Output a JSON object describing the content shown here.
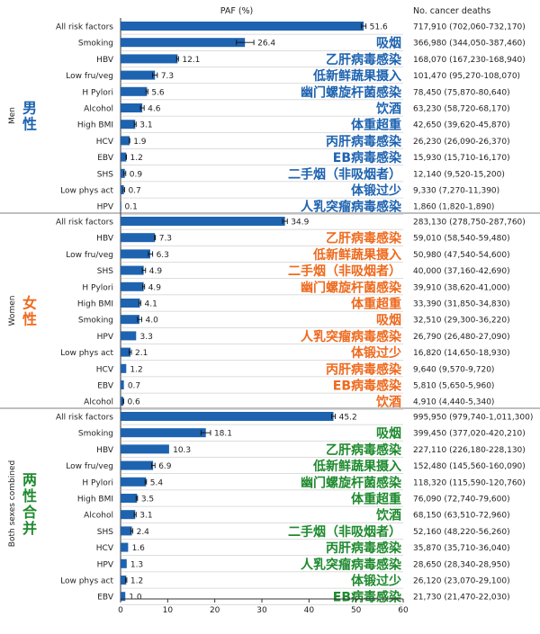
{
  "chart_data": {
    "type": "bar",
    "orientation": "horizontal",
    "xlabel": "PAF (%)",
    "right_header": "No. cancer deaths",
    "xlim": [
      0,
      60
    ],
    "xticks": [
      0,
      10,
      20,
      30,
      40,
      50,
      60
    ],
    "bar_color": "#1e63b0",
    "grid": false,
    "panels": [
      {
        "label": "Men",
        "cn_label": "男性",
        "cn_color": "#1e63b0",
        "rows": [
          {
            "category": "All risk factors",
            "value": 51.6,
            "err": [
              51.1,
              52.1
            ],
            "cn": "",
            "deaths": "717,910 (702,060-732,170)"
          },
          {
            "category": "Smoking",
            "value": 26.4,
            "err": [
              24.6,
              28.3
            ],
            "cn": "吸烟",
            "deaths": "366,980 (344,050-387,460)"
          },
          {
            "category": "HBV",
            "value": 12.1,
            "err": [
              11.9,
              12.3
            ],
            "cn": "乙肝病毒感染",
            "deaths": "168,070 (167,230-168,940)"
          },
          {
            "category": "Low fru/veg",
            "value": 7.3,
            "err": [
              6.8,
              7.8
            ],
            "cn": "低新鲜蔬果摄入",
            "deaths": "101,470 (95,270-108,070)"
          },
          {
            "category": "H Pylori",
            "value": 5.6,
            "err": [
              5.4,
              5.8
            ],
            "cn": "幽门螺旋杆菌感染",
            "deaths": "78,450 (75,870-80,640)"
          },
          {
            "category": "Alcohol",
            "value": 4.6,
            "err": [
              4.2,
              5.0
            ],
            "cn": "饮酒",
            "deaths": "63,230 (58,720-68,170)"
          },
          {
            "category": "High BMI",
            "value": 3.1,
            "err": [
              2.9,
              3.3
            ],
            "cn": "体重超重",
            "deaths": "42,650 (39,620-45,870)"
          },
          {
            "category": "HCV",
            "value": 1.9,
            "err": [
              1.85,
              1.95
            ],
            "cn": "丙肝病毒感染",
            "deaths": "26,230 (26,090-26,370)"
          },
          {
            "category": "EBV",
            "value": 1.2,
            "err": [
              1.15,
              1.25
            ],
            "cn": "EB病毒感染",
            "deaths": "15,930 (15,710-16,170)"
          },
          {
            "category": "SHS",
            "value": 0.9,
            "err": [
              0.7,
              1.1
            ],
            "cn": "二手烟（非吸烟者）",
            "deaths": "12,140 (9,520-15,200)"
          },
          {
            "category": "Low phys act",
            "value": 0.7,
            "err": [
              0.55,
              0.85
            ],
            "cn": "体锻过少",
            "deaths": "9,330 (7,270-11,390)"
          },
          {
            "category": "HPV",
            "value": 0.1,
            "err": [
              0.1,
              0.1
            ],
            "cn": "人乳突瘤病毒感染",
            "deaths": "1,860 (1,820-1,890)"
          }
        ]
      },
      {
        "label": "Women",
        "cn_label": "女性",
        "cn_color": "#ee6a1e",
        "rows": [
          {
            "category": "All risk factors",
            "value": 34.9,
            "err": [
              34.4,
              35.4
            ],
            "cn": "",
            "deaths": "283,130 (278,750-287,760)"
          },
          {
            "category": "HBV",
            "value": 7.3,
            "err": [
              7.2,
              7.4
            ],
            "cn": "乙肝病毒感染",
            "deaths": "59,010 (58,540-59,480)"
          },
          {
            "category": "Low fru/veg",
            "value": 6.3,
            "err": [
              5.9,
              6.8
            ],
            "cn": "低新鲜蔬果摄入",
            "deaths": "50,980 (47,540-54,600)"
          },
          {
            "category": "SHS",
            "value": 4.9,
            "err": [
              4.6,
              5.3
            ],
            "cn": "二手烟（非吸烟者）",
            "deaths": "40,000 (37,160-42,690)"
          },
          {
            "category": "H Pylori",
            "value": 4.9,
            "err": [
              4.7,
              5.1
            ],
            "cn": "幽门螺旋杆菌感染",
            "deaths": "39,910 (38,620-41,000)"
          },
          {
            "category": "High BMI",
            "value": 4.1,
            "err": [
              3.9,
              4.3
            ],
            "cn": "体重超重",
            "deaths": "33,390 (31,850-34,830)"
          },
          {
            "category": "Smoking",
            "value": 4.0,
            "err": [
              3.6,
              4.5
            ],
            "cn": "吸烟",
            "deaths": "32,510 (29,300-36,220)"
          },
          {
            "category": "HPV",
            "value": 3.3,
            "err": [
              3.28,
              3.35
            ],
            "cn": "人乳突瘤病毒感染",
            "deaths": "26,790 (26,480-27,090)"
          },
          {
            "category": "Low phys act",
            "value": 2.1,
            "err": [
              1.8,
              2.3
            ],
            "cn": "体锻过少",
            "deaths": "16,820 (14,650-18,930)"
          },
          {
            "category": "HCV",
            "value": 1.2,
            "err": [
              1.18,
              1.22
            ],
            "cn": "丙肝病毒感染",
            "deaths": "9,640 (9,570-9,720)"
          },
          {
            "category": "EBV",
            "value": 0.7,
            "err": [
              0.69,
              0.73
            ],
            "cn": "EB病毒感染",
            "deaths": "5,810 (5,650-5,960)"
          },
          {
            "category": "Alcohol",
            "value": 0.6,
            "err": [
              0.55,
              0.66
            ],
            "cn": "饮酒",
            "deaths": "4,910 (4,440-5,340)"
          }
        ]
      },
      {
        "label": "Both sexes combined",
        "cn_label": "两性合并",
        "cn_color": "#1e8a2e",
        "rows": [
          {
            "category": "All risk factors",
            "value": 45.2,
            "err": [
              44.8,
              45.6
            ],
            "cn": "",
            "deaths": "995,950 (979,740-1,011,300)"
          },
          {
            "category": "Smoking",
            "value": 18.1,
            "err": [
              17.1,
              19.1
            ],
            "cn": "吸烟",
            "deaths": "399,450 (377,020-420,210)"
          },
          {
            "category": "HBV",
            "value": 10.3,
            "err": [
              10.26,
              10.34
            ],
            "cn": "乙肝病毒感染",
            "deaths": "227,110 (226,180-228,130)"
          },
          {
            "category": "Low fru/veg",
            "value": 6.9,
            "err": [
              6.6,
              7.3
            ],
            "cn": "低新鲜蔬果摄入",
            "deaths": "152,480 (145,560-160,090)"
          },
          {
            "category": "H Pylori",
            "value": 5.4,
            "err": [
              5.2,
              5.5
            ],
            "cn": "幽门螺旋杆菌感染",
            "deaths": "118,320 (115,590-120,760)"
          },
          {
            "category": "High BMI",
            "value": 3.5,
            "err": [
              3.3,
              3.6
            ],
            "cn": "体重超重",
            "deaths": "76,090 (72,740-79,600)"
          },
          {
            "category": "Alcohol",
            "value": 3.1,
            "err": [
              2.9,
              3.3
            ],
            "cn": "饮酒",
            "deaths": "68,150 (63,510-72,960)"
          },
          {
            "category": "SHS",
            "value": 2.4,
            "err": [
              2.2,
              2.6
            ],
            "cn": "二手烟（非吸烟者）",
            "deaths": "52,160 (48,220-56,260)"
          },
          {
            "category": "HCV",
            "value": 1.6,
            "err": [
              1.59,
              1.64
            ],
            "cn": "丙肝病毒感染",
            "deaths": "35,870 (35,710-36,040)"
          },
          {
            "category": "HPV",
            "value": 1.3,
            "err": [
              1.28,
              1.31
            ],
            "cn": "人乳突瘤病毒感染",
            "deaths": "28,650 (28,340-28,950)"
          },
          {
            "category": "Low phys act",
            "value": 1.2,
            "err": [
              1.05,
              1.32
            ],
            "cn": "体锻过少",
            "deaths": "26,120 (23,070-29,100)"
          },
          {
            "category": "EBV",
            "value": 1.0,
            "err": [
              0.98,
              1.01
            ],
            "cn": "EB病毒感染",
            "deaths": "21,730 (21,470-22,030)"
          }
        ]
      }
    ]
  }
}
